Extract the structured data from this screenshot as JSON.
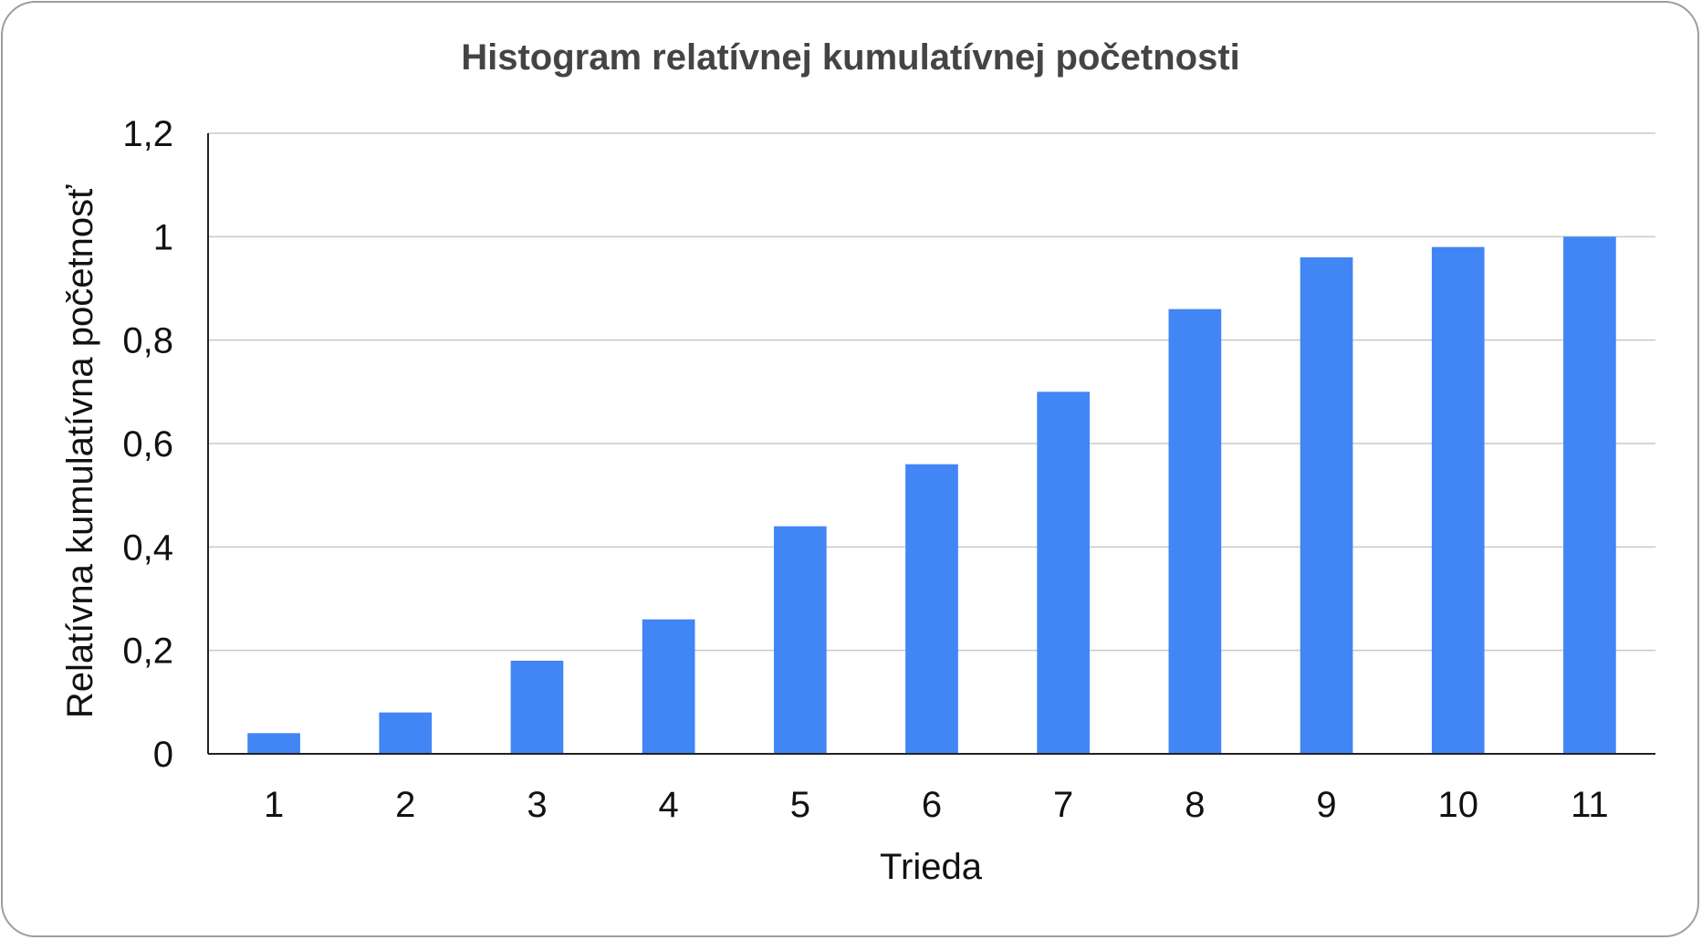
{
  "chart_data": {
    "type": "bar",
    "title": "Histogram relatívnej kumulatívnej početnosti",
    "xlabel": "Trieda",
    "ylabel": "Relatívna kumulatívna početnosť",
    "categories": [
      "1",
      "2",
      "3",
      "4",
      "5",
      "6",
      "7",
      "8",
      "9",
      "10",
      "11"
    ],
    "values": [
      0.04,
      0.08,
      0.18,
      0.26,
      0.44,
      0.56,
      0.7,
      0.86,
      0.96,
      0.98,
      1.0
    ],
    "ylim": [
      0,
      1.2
    ],
    "yticks": [
      0,
      0.2,
      0.4,
      0.6,
      0.8,
      1,
      1.2
    ],
    "ytick_labels": [
      "0",
      "0,2",
      "0,4",
      "0,6",
      "0,8",
      "1",
      "1,2"
    ],
    "grid": true,
    "legend": "none",
    "colors": {
      "bar": "#4285f4",
      "grid": "#c8c8c8",
      "axis": "#222222",
      "frame": "#9e9e9e"
    }
  }
}
